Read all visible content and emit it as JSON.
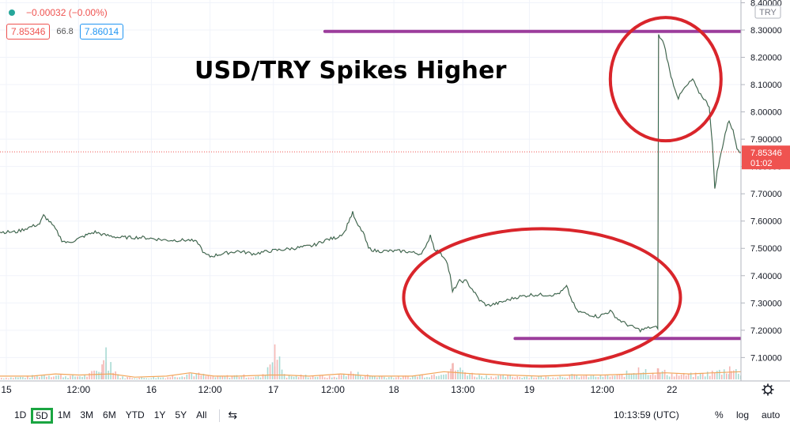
{
  "legend": {
    "change": "−0.00032 (−0.00%)",
    "sell": "7.85346",
    "spread": "66.8",
    "buy": "7.86014"
  },
  "currency_badge": "TRY",
  "annotation_title": "USD/TRY Spikes Higher",
  "last_price": {
    "value": "7.85346",
    "countdown": "01:02",
    "color": "#ef5350"
  },
  "toolbar": {
    "timeframes": [
      "1D",
      "5D",
      "1M",
      "3M",
      "6M",
      "YTD",
      "1Y",
      "5Y",
      "All"
    ],
    "selected": "5D",
    "clock": "10:13:59 (UTC)",
    "percent": "%",
    "log": "log",
    "auto": "auto"
  },
  "chart_data": {
    "type": "line",
    "title": "",
    "xlabel": "",
    "ylabel": "",
    "y_ticks": [
      "7.10000",
      "7.20000",
      "7.30000",
      "7.40000",
      "7.50000",
      "7.60000",
      "7.70000",
      "7.80000",
      "7.90000",
      "8.00000",
      "8.10000",
      "8.20000",
      "8.30000",
      "8.40000"
    ],
    "ylim": [
      7.02,
      8.41
    ],
    "xlim": [
      0,
      935
    ],
    "x_ticks": [
      {
        "label": "15",
        "x": 8
      },
      {
        "label": "12:00",
        "x": 99
      },
      {
        "label": "16",
        "x": 191
      },
      {
        "label": "12:00",
        "x": 265
      },
      {
        "label": "17",
        "x": 345
      },
      {
        "label": "12:00",
        "x": 420
      },
      {
        "label": "18",
        "x": 497
      },
      {
        "label": "13:00",
        "x": 584
      },
      {
        "label": "19",
        "x": 668
      },
      {
        "label": "12:00",
        "x": 760
      },
      {
        "label": "22",
        "x": 848
      }
    ],
    "series": [
      {
        "color": "#2d6a4f",
        "points": [
          [
            0,
            7.56
          ],
          [
            20,
            7.56
          ],
          [
            40,
            7.58
          ],
          [
            50,
            7.59
          ],
          [
            55,
            7.62
          ],
          [
            62,
            7.6
          ],
          [
            70,
            7.57
          ],
          [
            78,
            7.53
          ],
          [
            85,
            7.52
          ],
          [
            95,
            7.53
          ],
          [
            110,
            7.55
          ],
          [
            120,
            7.56
          ],
          [
            130,
            7.55
          ],
          [
            150,
            7.54
          ],
          [
            180,
            7.54
          ],
          [
            210,
            7.53
          ],
          [
            240,
            7.53
          ],
          [
            250,
            7.52
          ],
          [
            258,
            7.48
          ],
          [
            265,
            7.47
          ],
          [
            280,
            7.48
          ],
          [
            300,
            7.49
          ],
          [
            320,
            7.48
          ],
          [
            340,
            7.49
          ],
          [
            370,
            7.5
          ],
          [
            395,
            7.51
          ],
          [
            410,
            7.53
          ],
          [
            425,
            7.54
          ],
          [
            435,
            7.56
          ],
          [
            440,
            7.6
          ],
          [
            445,
            7.63
          ],
          [
            450,
            7.59
          ],
          [
            458,
            7.56
          ],
          [
            465,
            7.5
          ],
          [
            475,
            7.49
          ],
          [
            490,
            7.49
          ],
          [
            510,
            7.49
          ],
          [
            530,
            7.48
          ],
          [
            537,
            7.5
          ],
          [
            543,
            7.55
          ],
          [
            548,
            7.5
          ],
          [
            556,
            7.48
          ],
          [
            563,
            7.46
          ],
          [
            568,
            7.4
          ],
          [
            571,
            7.34
          ],
          [
            575,
            7.36
          ],
          [
            580,
            7.38
          ],
          [
            588,
            7.38
          ],
          [
            596,
            7.35
          ],
          [
            605,
            7.31
          ],
          [
            615,
            7.29
          ],
          [
            630,
            7.3
          ],
          [
            650,
            7.32
          ],
          [
            670,
            7.33
          ],
          [
            700,
            7.33
          ],
          [
            708,
            7.34
          ],
          [
            715,
            7.36
          ],
          [
            720,
            7.32
          ],
          [
            728,
            7.27
          ],
          [
            740,
            7.26
          ],
          [
            755,
            7.25
          ],
          [
            770,
            7.27
          ],
          [
            780,
            7.24
          ],
          [
            792,
            7.22
          ],
          [
            808,
            7.2
          ],
          [
            820,
            7.21
          ],
          [
            830,
            7.21
          ],
          [
            831,
            8.28
          ],
          [
            838,
            8.25
          ],
          [
            845,
            8.15
          ],
          [
            850,
            8.1
          ],
          [
            856,
            8.05
          ],
          [
            862,
            8.08
          ],
          [
            868,
            8.1
          ],
          [
            874,
            8.12
          ],
          [
            880,
            8.08
          ],
          [
            888,
            8.05
          ],
          [
            895,
            8.02
          ],
          [
            899,
            7.88
          ],
          [
            902,
            7.72
          ],
          [
            905,
            7.78
          ],
          [
            910,
            7.85
          ],
          [
            915,
            7.92
          ],
          [
            920,
            7.97
          ],
          [
            925,
            7.93
          ],
          [
            930,
            7.87
          ],
          [
            935,
            7.85
          ]
        ]
      }
    ],
    "volume": [
      [
        0,
        0.02
      ],
      [
        30,
        0.03
      ],
      [
        60,
        0.06
      ],
      [
        90,
        0.04
      ],
      [
        110,
        0.05
      ],
      [
        128,
        0.15
      ],
      [
        133,
        0.32
      ],
      [
        150,
        0.03
      ],
      [
        180,
        0.02
      ],
      [
        210,
        0.03
      ],
      [
        240,
        0.08
      ],
      [
        270,
        0.03
      ],
      [
        300,
        0.05
      ],
      [
        330,
        0.03
      ],
      [
        346,
        0.35
      ],
      [
        360,
        0.04
      ],
      [
        390,
        0.05
      ],
      [
        420,
        0.03
      ],
      [
        440,
        0.09
      ],
      [
        470,
        0.04
      ],
      [
        500,
        0.03
      ],
      [
        530,
        0.05
      ],
      [
        545,
        0.06
      ],
      [
        570,
        0.16
      ],
      [
        600,
        0.05
      ],
      [
        630,
        0.04
      ],
      [
        660,
        0.04
      ],
      [
        690,
        0.03
      ],
      [
        720,
        0.05
      ],
      [
        750,
        0.04
      ],
      [
        780,
        0.05
      ],
      [
        805,
        0.12
      ],
      [
        830,
        0.11
      ],
      [
        850,
        0.06
      ],
      [
        880,
        0.06
      ],
      [
        905,
        0.1
      ],
      [
        920,
        0.13
      ],
      [
        935,
        0.09
      ]
    ],
    "volume_avg": [
      [
        0,
        0.03
      ],
      [
        40,
        0.03
      ],
      [
        70,
        0.05
      ],
      [
        100,
        0.04
      ],
      [
        140,
        0.05
      ],
      [
        170,
        0.02
      ],
      [
        210,
        0.03
      ],
      [
        240,
        0.06
      ],
      [
        270,
        0.03
      ],
      [
        300,
        0.03
      ],
      [
        340,
        0.04
      ],
      [
        360,
        0.04
      ],
      [
        390,
        0.03
      ],
      [
        430,
        0.05
      ],
      [
        470,
        0.03
      ],
      [
        520,
        0.03
      ],
      [
        560,
        0.07
      ],
      [
        600,
        0.05
      ],
      [
        640,
        0.04
      ],
      [
        680,
        0.03
      ],
      [
        720,
        0.04
      ],
      [
        760,
        0.04
      ],
      [
        800,
        0.05
      ],
      [
        840,
        0.06
      ],
      [
        870,
        0.05
      ],
      [
        900,
        0.06
      ],
      [
        935,
        0.07
      ]
    ],
    "horizontal_lines": [
      {
        "y": 8.295,
        "x1": 410,
        "x2": 940,
        "color": "#9c3d9c"
      },
      {
        "y": 7.17,
        "x1": 650,
        "x2": 938,
        "color": "#9c3d9c"
      }
    ],
    "circles": [
      {
        "cx": 840,
        "cy": 8.12,
        "rx": 70,
        "ry": 78,
        "color": "#d9252b"
      },
      {
        "cx": 684,
        "cy": 7.32,
        "rx": 175,
        "ry": 87,
        "color": "#d9252b"
      }
    ]
  }
}
